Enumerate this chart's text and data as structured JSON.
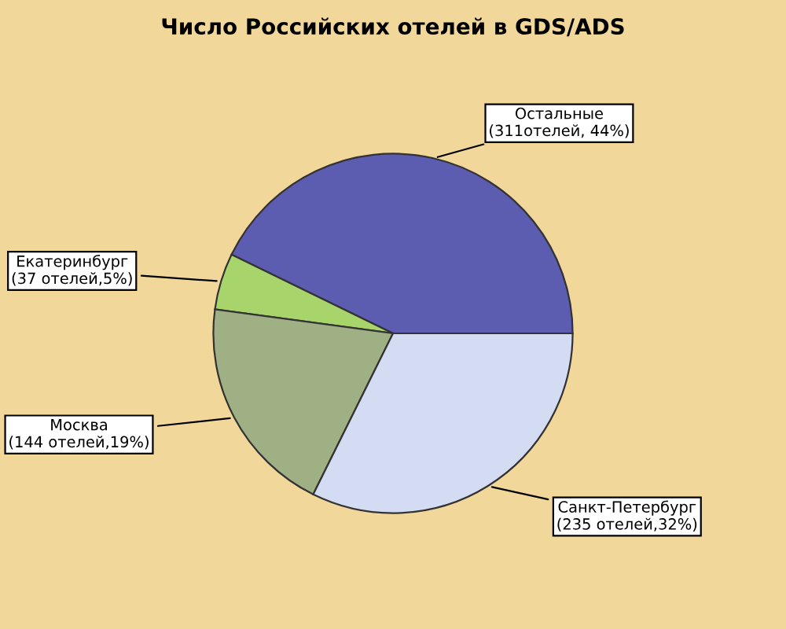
{
  "chart_data": {
    "type": "pie",
    "title": "Число Российских отелей в GDS/ADS",
    "categories": [
      "Остальные",
      "Екатеринбург",
      "Москва",
      "Санкт-Петербург"
    ],
    "values": [
      311,
      37,
      144,
      235
    ],
    "value_labels": [
      "(311отелей, 44%)",
      "(37 отелей,5%)",
      "(144 отелей,19%)",
      "(235 отелей,32%)"
    ],
    "colors": [
      "#5c5cb0",
      "#a8d46c",
      "#9fb084",
      "#d4dcf4"
    ],
    "legend": false
  }
}
